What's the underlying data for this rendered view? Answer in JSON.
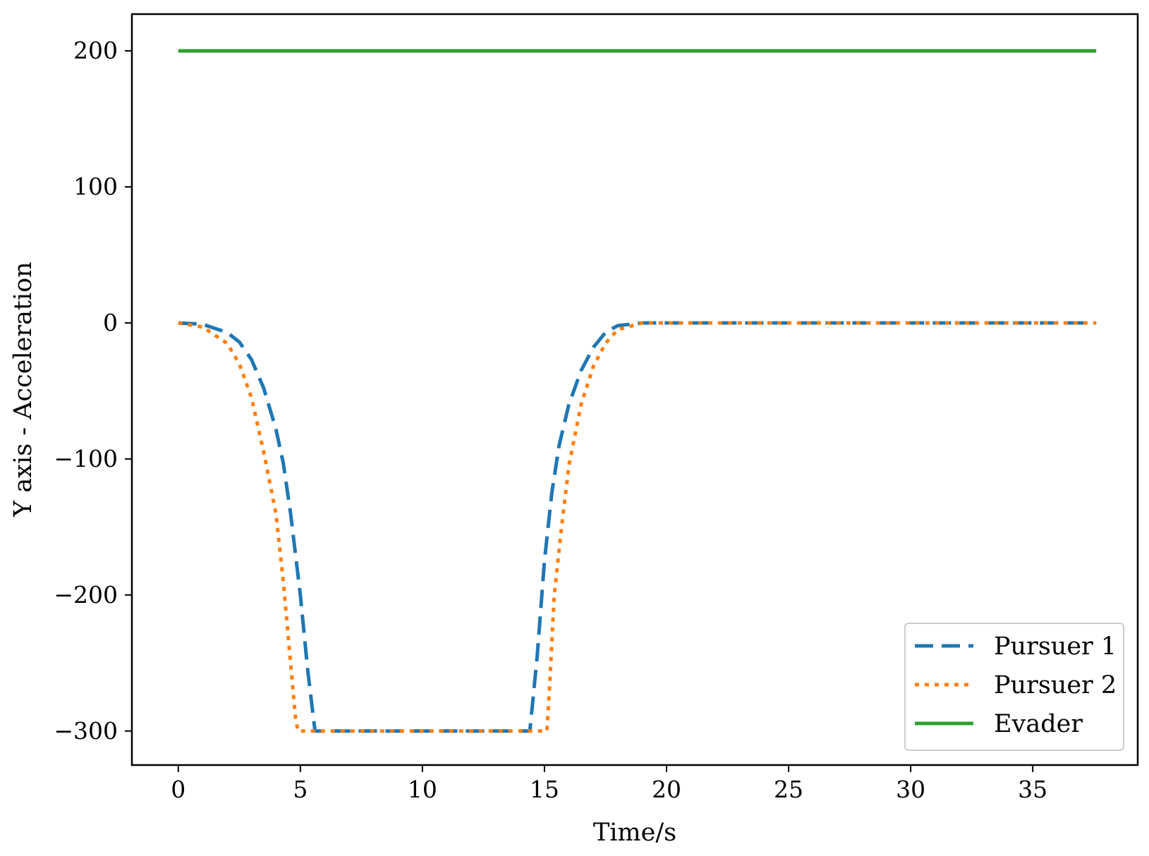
{
  "chart_data": {
    "type": "line",
    "title": "",
    "xlabel": "Time/s",
    "ylabel": "Y axis - Acceleration",
    "xlim": [
      -1.9,
      39.3
    ],
    "ylim": [
      -325,
      227
    ],
    "xticks": [
      0,
      5,
      10,
      15,
      20,
      25,
      30,
      35
    ],
    "yticks": [
      -300,
      -200,
      -100,
      0,
      100,
      200
    ],
    "ytick_labels": [
      "−300",
      "−200",
      "−100",
      "0",
      "100",
      "200"
    ],
    "grid": false,
    "legend_position": "lower-right",
    "series": [
      {
        "name": "Pursuer 1",
        "color": "#1f77b4",
        "style": "dashed",
        "x": [
          0,
          1,
          2,
          2.5,
          3,
          3.5,
          4,
          4.3,
          4.6,
          5.0,
          5.3,
          5.6,
          14.4,
          14.7,
          15.0,
          15.3,
          15.6,
          16.0,
          16.5,
          17,
          17.5,
          18,
          19,
          20,
          37.6
        ],
        "y": [
          0,
          -1,
          -7,
          -14,
          -27,
          -48,
          -78,
          -103,
          -140,
          -200,
          -255,
          -300,
          -300,
          -245,
          -175,
          -125,
          -90,
          -60,
          -35,
          -18,
          -7,
          -2,
          0,
          0,
          0
        ]
      },
      {
        "name": "Pursuer 2",
        "color": "#ff7f0e",
        "style": "dotted",
        "x": [
          0,
          1,
          2,
          2.5,
          3,
          3.5,
          4,
          4.3,
          4.6,
          4.8,
          4.9,
          15.1,
          15.2,
          15.4,
          15.7,
          16.0,
          16.5,
          17,
          17.5,
          18,
          19,
          20,
          37.6
        ],
        "y": [
          0,
          -3,
          -15,
          -30,
          -55,
          -95,
          -140,
          -190,
          -250,
          -290,
          -300,
          -300,
          -270,
          -200,
          -150,
          -105,
          -60,
          -32,
          -15,
          -5,
          0,
          0,
          0
        ]
      },
      {
        "name": "Evader",
        "color": "#2ca02c",
        "style": "solid",
        "x": [
          0,
          37.6
        ],
        "y": [
          200,
          200
        ]
      }
    ]
  }
}
